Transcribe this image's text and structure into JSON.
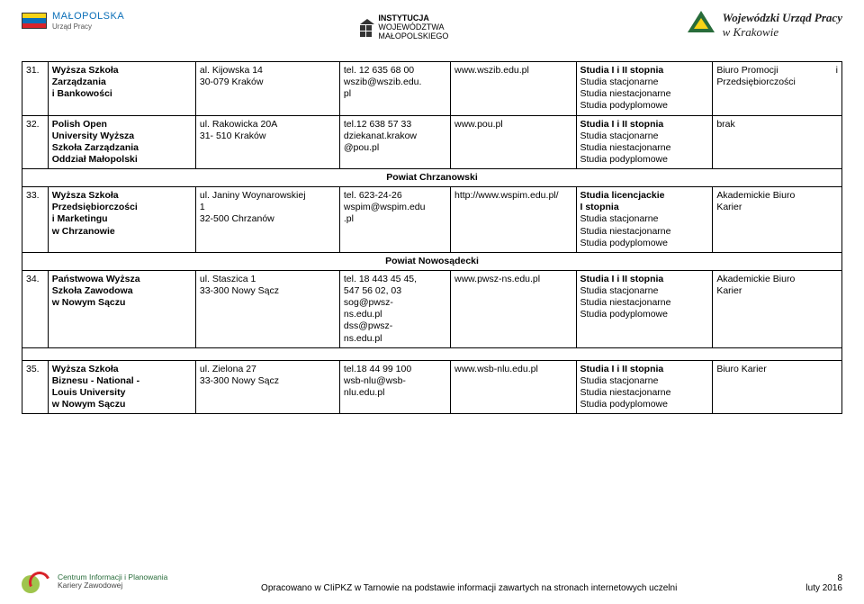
{
  "header": {
    "left": {
      "main": "MAŁOPOLSKA",
      "sub": "Urząd Pracy"
    },
    "center": {
      "line1": "INSTYTUCJA",
      "line2": "WOJEWÓDZTWA",
      "line3": "MAŁOPOLSKIEGO"
    },
    "right": {
      "line1": "Wojewódzki Urząd Pracy",
      "line2": "w Krakowie"
    }
  },
  "rows": {
    "r31": {
      "num": "31.",
      "name1": "Wyższa Szkoła",
      "name2": "Zarządzania",
      "name3": "i Bankowości",
      "addr1": "al. Kijowska 14",
      "addr2": "30-079 Kraków",
      "contact1": "tel. 12 635 68 00",
      "contact2": "wszib@wszib.edu.",
      "contact3": "pl",
      "web": "www.wszib.edu.pl",
      "study1": "Studia I i II stopnia",
      "study2": "Studia stacjonarne",
      "study3": "Studia niestacjonarne",
      "study4": "Studia podyplomowe",
      "office1a": "Biuro Promocji",
      "office1b": "i",
      "office2": "Przedsiębiorczości"
    },
    "r32": {
      "num": "32.",
      "name1": "Polish Open",
      "name2": "University Wyższa",
      "name3": "Szkoła Zarządzania",
      "name4": "Oddział Małopolski",
      "addr1": "ul. Rakowicka 20A",
      "addr2": "31- 510 Kraków",
      "contact1": "tel.12 638 57 33",
      "contact2": "dziekanat.krakow",
      "contact3": "@pou.pl",
      "web": "www.pou.pl",
      "study1": "Studia I i II stopnia",
      "study2": "Studia stacjonarne",
      "study3": "Studia niestacjonarne",
      "study4": "Studia podyplomowe",
      "office": "brak"
    },
    "section1": "Powiat Chrzanowski",
    "r33": {
      "num": "33.",
      "name1": "Wyższa Szkoła",
      "name2": "Przedsiębiorczości",
      "name3": "i Marketingu",
      "name4": "w Chrzanowie",
      "addr1": "ul. Janiny Woynarowskiej",
      "addr2": "1",
      "addr3": "32-500 Chrzanów",
      "contact1": "tel. 623-24-26",
      "contact2": "wspim@wspim.edu",
      "contact3": ".pl",
      "web": "http://www.wspim.edu.pl/",
      "study1": "Studia licencjackie",
      "study2": "I stopnia",
      "study3": "Studia stacjonarne",
      "study4": "Studia niestacjonarne",
      "study5": "Studia podyplomowe",
      "office1": "Akademickie Biuro",
      "office2": "Karier"
    },
    "section2": "Powiat Nowosądecki",
    "r34": {
      "num": "34.",
      "name1": "Państwowa Wyższa",
      "name2": "Szkoła Zawodowa",
      "name3": "w Nowym Sączu",
      "addr1": "ul. Staszica 1",
      "addr2": "33-300 Nowy Sącz",
      "contact1": "tel. 18 443 45 45,",
      "contact2": "547 56 02, 03",
      "contact3": "sog@pwsz-",
      "contact4": "ns.edu.pl",
      "contact5": "dss@pwsz-",
      "contact6": "ns.edu.pl",
      "web": "www.pwsz-ns.edu.pl",
      "study1": "Studia I i II stopnia",
      "study2": "Studia stacjonarne",
      "study3": "Studia niestacjonarne",
      "study4": "Studia podyplomowe",
      "office1": "Akademickie Biuro",
      "office2": "Karier"
    },
    "r35": {
      "num": "35.",
      "name1": "Wyższa Szkoła",
      "name2": "Biznesu - National -",
      "name3": "Louis University",
      "name4": "w Nowym Sączu",
      "addr1": "ul. Zielona 27",
      "addr2": "33-300 Nowy Sącz",
      "contact1": "tel.18 44 99 100",
      "contact2": "wsb-nlu@wsb-",
      "contact3": "nlu.edu.pl",
      "web": "www.wsb-nlu.edu.pl",
      "study1": "Studia I i II stopnia",
      "study2": "Studia stacjonarne",
      "study3": "Studia niestacjonarne",
      "study4": "Studia podyplomowe",
      "office": "Biuro Karier"
    }
  },
  "footer": {
    "logoText1": "Centrum Informacji i Planowania",
    "logoText2": "Kariery Zawodowej",
    "center": "Opracowano w CIiPKZ w Tarnowie na podstawie informacji zawartych na stronach internetowych uczelni",
    "page": "8",
    "date": "luty 2016"
  }
}
